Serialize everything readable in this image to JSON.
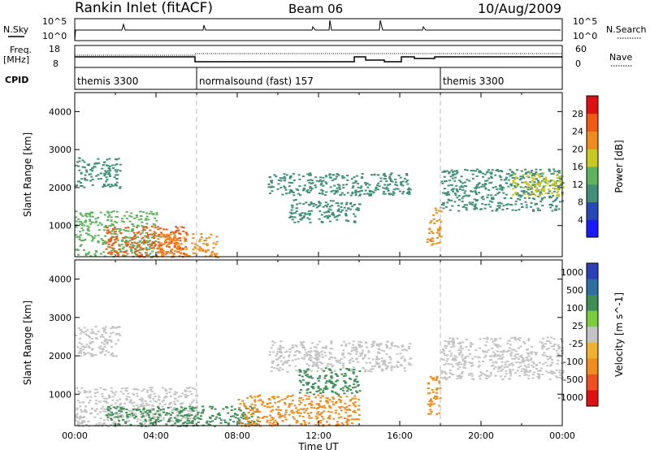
{
  "header": {
    "station": "Rankin Inlet (fitACF)",
    "beam": "Beam 06",
    "date": "10/Aug/2009"
  },
  "strip_labels": {
    "nsky": "N.Sky",
    "nsky_ticks": [
      "10^5",
      "10^0"
    ],
    "nsearch": "N.Search",
    "nsearch_ticks": [
      "10^5",
      "10^0"
    ],
    "freq_label": "Freq.",
    "freq_unit": "[MHz]",
    "freq_ticks": [
      "18",
      "8"
    ],
    "nave": "Nave",
    "nave_ticks": [
      "60",
      "0"
    ],
    "cpid": "CPID"
  },
  "cpid_segments": [
    {
      "label": "themis 3300",
      "start_hour": 0,
      "end_hour": 6
    },
    {
      "label": "normalsound (fast) 157",
      "start_hour": 6,
      "end_hour": 18
    },
    {
      "label": "themis 3300",
      "start_hour": 18,
      "end_hour": 24
    }
  ],
  "chart_data": [
    {
      "type": "heatmap",
      "title": "Power",
      "xlabel": "",
      "ylabel": "Slant Range [km]",
      "x_range_hours": [
        0,
        24
      ],
      "ylim": [
        180,
        4500
      ],
      "y_ticks": [
        "1000",
        "2000",
        "3000",
        "4000"
      ],
      "colorbar": {
        "label": "Power [dB]",
        "ticks": [
          "4",
          "8",
          "12",
          "16",
          "20",
          "24",
          "28"
        ],
        "colors": [
          "#1a1aff",
          "#2848b8",
          "#3f8f7a",
          "#5fb35f",
          "#c8c820",
          "#f08c1e",
          "#f05a14",
          "#e01010"
        ]
      },
      "echo_regions": [
        {
          "t_start": 0.0,
          "t_end": 2.2,
          "r_min": 2000,
          "r_max": 2800,
          "power_db": 10
        },
        {
          "t_start": 0.0,
          "t_end": 4.0,
          "r_min": 180,
          "r_max": 1400,
          "power_db": 14
        },
        {
          "t_start": 1.5,
          "t_end": 5.5,
          "r_min": 180,
          "r_max": 1000,
          "power_db": 28
        },
        {
          "t_start": 4.0,
          "t_end": 7.0,
          "r_min": 180,
          "r_max": 800,
          "power_db": 22
        },
        {
          "t_start": 9.5,
          "t_end": 16.5,
          "r_min": 1800,
          "r_max": 2400,
          "power_db": 10
        },
        {
          "t_start": 10.5,
          "t_end": 14.0,
          "r_min": 1100,
          "r_max": 1700,
          "power_db": 12
        },
        {
          "t_start": 17.3,
          "t_end": 18.0,
          "r_min": 500,
          "r_max": 1500,
          "power_db": 22
        },
        {
          "t_start": 18.0,
          "t_end": 24.0,
          "r_min": 1400,
          "r_max": 2500,
          "power_db": 10
        },
        {
          "t_start": 21.5,
          "t_end": 24.0,
          "r_min": 1800,
          "r_max": 2400,
          "power_db": 18
        }
      ]
    },
    {
      "type": "heatmap",
      "title": "Velocity",
      "xlabel": "Time UT",
      "ylabel": "Slant Range [km]",
      "x_range_hours": [
        0,
        24
      ],
      "x_ticks": [
        "00:00",
        "04:00",
        "08:00",
        "12:00",
        "16:00",
        "20:00",
        "00:00"
      ],
      "ylim": [
        180,
        4500
      ],
      "y_ticks": [
        "1000",
        "2000",
        "3000",
        "4000"
      ],
      "colorbar": {
        "label": "Velocity [m s^-1]",
        "ticks": [
          "1000",
          "500",
          "100",
          "25",
          "-25",
          "-100",
          "-500",
          "-1000"
        ],
        "colors": [
          "#2a3fb8",
          "#2d6fa0",
          "#3d8f55",
          "#7ccd3c",
          "#c4c4c4",
          "#f0b030",
          "#f08c1e",
          "#f05020",
          "#e01010"
        ]
      },
      "echo_regions": [
        {
          "t_start": 0.0,
          "t_end": 2.2,
          "r_min": 2000,
          "r_max": 2800,
          "velocity_ms": 0
        },
        {
          "t_start": 0.0,
          "t_end": 6.0,
          "r_min": 180,
          "r_max": 1200,
          "velocity_ms": 0
        },
        {
          "t_start": 1.5,
          "t_end": 9.0,
          "r_min": 180,
          "r_max": 700,
          "velocity_ms": 150
        },
        {
          "t_start": 8.0,
          "t_end": 14.0,
          "r_min": 180,
          "r_max": 1000,
          "velocity_ms": -120
        },
        {
          "t_start": 9.5,
          "t_end": 16.5,
          "r_min": 1600,
          "r_max": 2400,
          "velocity_ms": 0
        },
        {
          "t_start": 11.0,
          "t_end": 14.0,
          "r_min": 1000,
          "r_max": 1700,
          "velocity_ms": 110
        },
        {
          "t_start": 17.3,
          "t_end": 18.0,
          "r_min": 500,
          "r_max": 1500,
          "velocity_ms": -300
        },
        {
          "t_start": 18.0,
          "t_end": 24.0,
          "r_min": 1400,
          "r_max": 2500,
          "velocity_ms": 0
        }
      ]
    }
  ]
}
